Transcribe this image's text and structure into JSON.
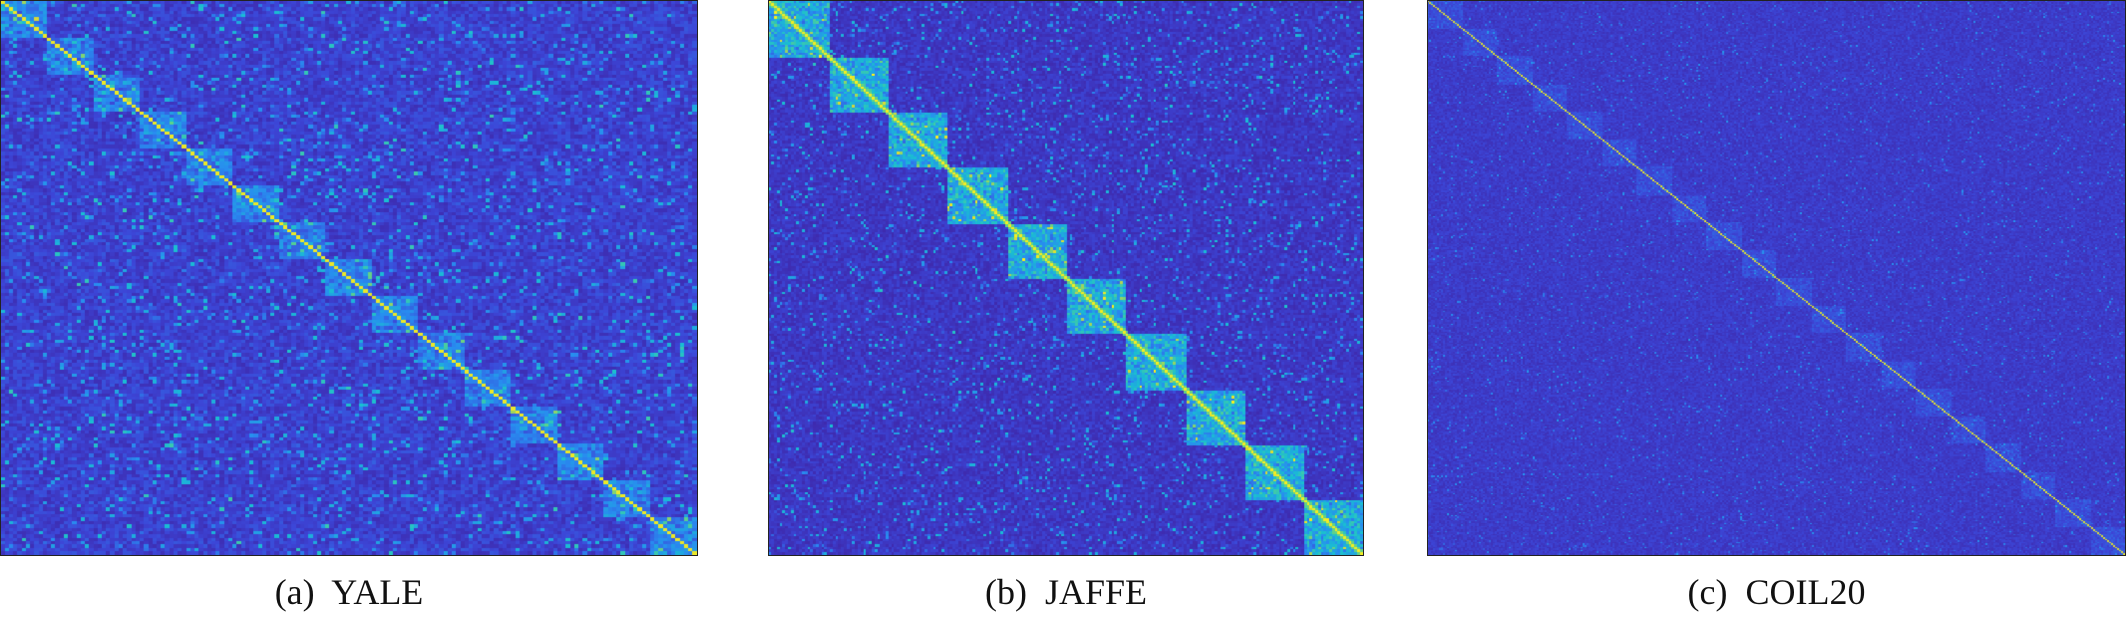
{
  "figure": {
    "panels": [
      {
        "id": "yale",
        "caption": "(a)  YALE"
      },
      {
        "id": "jaffe",
        "caption": "(b)  JAFFE"
      },
      {
        "id": "coil",
        "caption": "(c)  COIL20"
      }
    ]
  },
  "chart_data": [
    {
      "type": "heatmap",
      "title": "",
      "caption": "(a)  YALE",
      "dataset": "YALE",
      "n": 165,
      "clusters": 15,
      "cluster_size": 11,
      "matrix_description": "block-diagonal affinity matrix with bright diagonal",
      "colormap": "parula",
      "colors": {
        "low": "#3d26c8",
        "mid": "#2aa5d8",
        "high": "#f5e71f"
      },
      "grid": false,
      "legend": "none"
    },
    {
      "type": "heatmap",
      "title": "",
      "caption": "(b)  JAFFE",
      "dataset": "JAFFE",
      "n": 213,
      "clusters": 10,
      "cluster_size_approx": 21,
      "matrix_description": "block-diagonal affinity matrix with strong diagonal blocks",
      "colormap": "parula",
      "colors": {
        "low": "#3d26c8",
        "mid": "#2aa5d8",
        "high": "#f5e71f"
      },
      "grid": false,
      "legend": "none"
    },
    {
      "type": "heatmap",
      "title": "",
      "caption": "(c)  COIL20",
      "dataset": "COIL20",
      "n": 1440,
      "clusters": 20,
      "cluster_size": 72,
      "matrix_description": "sparse affinity matrix with thin bright diagonal and faint diagonal blocks",
      "colormap": "parula",
      "colors": {
        "low": "#3d26c8",
        "mid": "#2aa5d8",
        "high": "#f5e71f"
      },
      "grid": false,
      "legend": "none"
    }
  ]
}
